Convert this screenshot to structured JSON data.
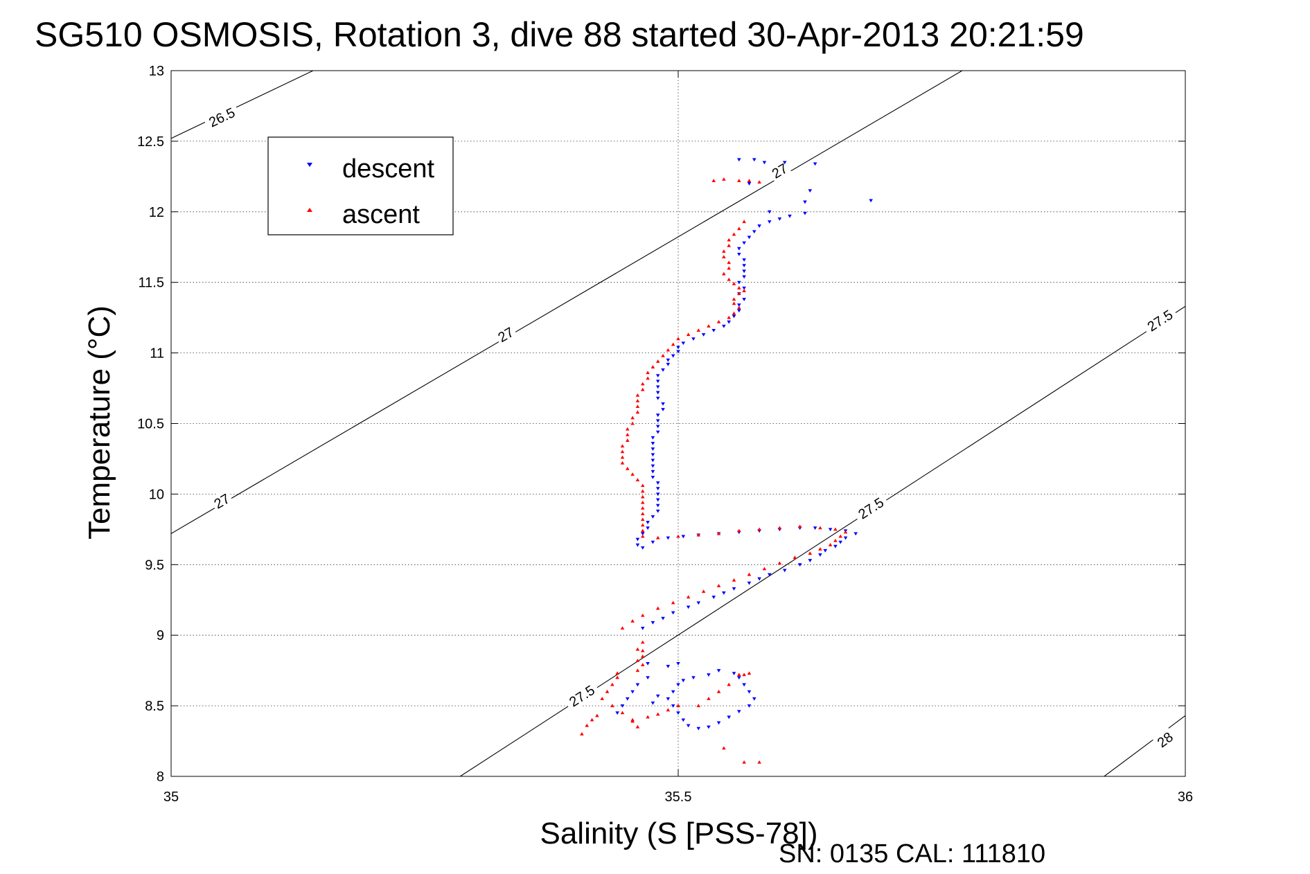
{
  "footer": "SN: 0135  CAL: 111810",
  "chart_data": {
    "type": "scatter",
    "title": "SG510 OSMOSIS, Rotation 3, dive 88 started 30-Apr-2013 20:21:59",
    "xlabel": "Salinity (S [PSS-78])",
    "ylabel": "Temperature (°C)",
    "xlim": [
      35,
      36
    ],
    "ylim": [
      8,
      13
    ],
    "xticks": [
      35,
      35.5,
      36
    ],
    "xtick_labels": [
      "35",
      "35.5",
      "36"
    ],
    "yticks": [
      8,
      8.5,
      9,
      9.5,
      10,
      10.5,
      11,
      11.5,
      12,
      12.5,
      13
    ],
    "ytick_labels": [
      "8",
      "8.5",
      "9",
      "9.5",
      "10",
      "10.5",
      "11",
      "11.5",
      "12",
      "12.5",
      "13"
    ],
    "grid": true,
    "legend_position": "top-left",
    "isopycnals": [
      {
        "label": "26.5",
        "segments": [
          [
            [
              35.0,
              12.52
            ],
            [
              35.14,
              13.0
            ]
          ]
        ],
        "labels_at": [
          [
            35.05,
            12.67
          ]
        ]
      },
      {
        "label": "27",
        "segments": [
          [
            [
              35.0,
              9.72
            ],
            [
              35.78,
              13.0
            ]
          ]
        ],
        "labels_at": [
          [
            35.05,
            9.95
          ],
          [
            35.33,
            11.13
          ],
          [
            35.6,
            12.29
          ]
        ]
      },
      {
        "label": "27.5",
        "segments": [
          [
            [
              35.285,
              8.0
            ],
            [
              36.0,
              11.33
            ]
          ]
        ],
        "labels_at": [
          [
            35.405,
            8.57
          ],
          [
            35.69,
            9.9
          ],
          [
            35.975,
            11.23
          ]
        ]
      },
      {
        "label": "28",
        "segments": [
          [
            [
              35.92,
              8.0
            ],
            [
              36.0,
              8.43
            ]
          ]
        ],
        "labels_at": [
          [
            35.98,
            8.26
          ]
        ]
      }
    ],
    "series": [
      {
        "name": "descent",
        "color": "#0000ff",
        "marker": "triangle-down",
        "points": [
          [
            35.56,
            12.37
          ],
          [
            35.575,
            12.37
          ],
          [
            35.585,
            12.35
          ],
          [
            35.605,
            12.35
          ],
          [
            35.635,
            12.34
          ],
          [
            35.57,
            12.2
          ],
          [
            35.63,
            12.15
          ],
          [
            35.625,
            12.07
          ],
          [
            35.69,
            12.08
          ],
          [
            35.59,
            12.0
          ],
          [
            35.625,
            11.99
          ],
          [
            35.61,
            11.97
          ],
          [
            35.6,
            11.95
          ],
          [
            35.59,
            11.93
          ],
          [
            35.58,
            11.9
          ],
          [
            35.575,
            11.86
          ],
          [
            35.57,
            11.82
          ],
          [
            35.565,
            11.78
          ],
          [
            35.56,
            11.74
          ],
          [
            35.56,
            11.7
          ],
          [
            35.565,
            11.66
          ],
          [
            35.565,
            11.62
          ],
          [
            35.565,
            11.58
          ],
          [
            35.565,
            11.54
          ],
          [
            35.56,
            11.5
          ],
          [
            35.565,
            11.46
          ],
          [
            35.56,
            11.42
          ],
          [
            35.565,
            11.38
          ],
          [
            35.56,
            11.34
          ],
          [
            35.56,
            11.3
          ],
          [
            35.555,
            11.26
          ],
          [
            35.55,
            11.22
          ],
          [
            35.545,
            11.19
          ],
          [
            35.535,
            11.16
          ],
          [
            35.525,
            11.13
          ],
          [
            35.515,
            11.1
          ],
          [
            35.505,
            11.07
          ],
          [
            35.5,
            11.04
          ],
          [
            35.5,
            11.01
          ],
          [
            35.495,
            10.98
          ],
          [
            35.49,
            10.95
          ],
          [
            35.49,
            10.92
          ],
          [
            35.485,
            10.88
          ],
          [
            35.48,
            10.84
          ],
          [
            35.48,
            10.8
          ],
          [
            35.48,
            10.76
          ],
          [
            35.48,
            10.72
          ],
          [
            35.48,
            10.68
          ],
          [
            35.485,
            10.64
          ],
          [
            35.485,
            10.6
          ],
          [
            35.48,
            10.56
          ],
          [
            35.48,
            10.52
          ],
          [
            35.48,
            10.48
          ],
          [
            35.48,
            10.44
          ],
          [
            35.475,
            10.4
          ],
          [
            35.475,
            10.36
          ],
          [
            35.475,
            10.32
          ],
          [
            35.475,
            10.28
          ],
          [
            35.475,
            10.24
          ],
          [
            35.475,
            10.2
          ],
          [
            35.475,
            10.16
          ],
          [
            35.475,
            10.12
          ],
          [
            35.48,
            10.08
          ],
          [
            35.48,
            10.04
          ],
          [
            35.48,
            10.0
          ],
          [
            35.48,
            9.96
          ],
          [
            35.48,
            9.92
          ],
          [
            35.48,
            9.88
          ],
          [
            35.475,
            9.84
          ],
          [
            35.47,
            9.8
          ],
          [
            35.47,
            9.76
          ],
          [
            35.465,
            9.72
          ],
          [
            35.46,
            9.68
          ],
          [
            35.46,
            9.64
          ],
          [
            35.465,
            9.62
          ],
          [
            35.475,
            9.66
          ],
          [
            35.49,
            9.69
          ],
          [
            35.505,
            9.7
          ],
          [
            35.52,
            9.71
          ],
          [
            35.54,
            9.72
          ],
          [
            35.56,
            9.73
          ],
          [
            35.58,
            9.74
          ],
          [
            35.6,
            9.75
          ],
          [
            35.62,
            9.76
          ],
          [
            35.635,
            9.76
          ],
          [
            35.65,
            9.75
          ],
          [
            35.665,
            9.74
          ],
          [
            35.675,
            9.72
          ],
          [
            35.665,
            9.69
          ],
          [
            35.66,
            9.66
          ],
          [
            35.655,
            9.63
          ],
          [
            35.645,
            9.6
          ],
          [
            35.64,
            9.57
          ],
          [
            35.63,
            9.53
          ],
          [
            35.62,
            9.5
          ],
          [
            35.605,
            9.46
          ],
          [
            35.59,
            9.43
          ],
          [
            35.58,
            9.4
          ],
          [
            35.57,
            9.37
          ],
          [
            35.555,
            9.33
          ],
          [
            35.545,
            9.3
          ],
          [
            35.535,
            9.27
          ],
          [
            35.52,
            9.23
          ],
          [
            35.51,
            9.2
          ],
          [
            35.495,
            9.16
          ],
          [
            35.485,
            9.12
          ],
          [
            35.475,
            9.09
          ],
          [
            35.465,
            9.05
          ],
          [
            35.555,
            8.73
          ],
          [
            35.54,
            8.75
          ],
          [
            35.53,
            8.72
          ],
          [
            35.515,
            8.7
          ],
          [
            35.505,
            8.68
          ],
          [
            35.5,
            8.65
          ],
          [
            35.495,
            8.6
          ],
          [
            35.49,
            8.55
          ],
          [
            35.495,
            8.5
          ],
          [
            35.5,
            8.45
          ],
          [
            35.505,
            8.4
          ],
          [
            35.51,
            8.36
          ],
          [
            35.52,
            8.34
          ],
          [
            35.53,
            8.35
          ],
          [
            35.54,
            8.38
          ],
          [
            35.55,
            8.42
          ],
          [
            35.56,
            8.46
          ],
          [
            35.57,
            8.5
          ],
          [
            35.575,
            8.55
          ],
          [
            35.57,
            8.6
          ],
          [
            35.565,
            8.65
          ],
          [
            35.56,
            8.7
          ],
          [
            35.47,
            8.7
          ],
          [
            35.46,
            8.65
          ],
          [
            35.455,
            8.6
          ],
          [
            35.45,
            8.55
          ],
          [
            35.445,
            8.5
          ],
          [
            35.44,
            8.45
          ],
          [
            35.47,
            8.8
          ],
          [
            35.49,
            8.78
          ],
          [
            35.5,
            8.8
          ],
          [
            35.48,
            8.57
          ],
          [
            35.475,
            8.52
          ]
        ]
      },
      {
        "name": "ascent",
        "color": "#ff0000",
        "marker": "triangle-up",
        "points": [
          [
            35.535,
            12.22
          ],
          [
            35.545,
            12.23
          ],
          [
            35.56,
            12.22
          ],
          [
            35.57,
            12.22
          ],
          [
            35.58,
            12.21
          ],
          [
            35.565,
            11.93
          ],
          [
            35.56,
            11.88
          ],
          [
            35.555,
            11.84
          ],
          [
            35.55,
            11.8
          ],
          [
            35.55,
            11.76
          ],
          [
            35.545,
            11.72
          ],
          [
            35.545,
            11.68
          ],
          [
            35.55,
            11.64
          ],
          [
            35.55,
            11.6
          ],
          [
            35.545,
            11.56
          ],
          [
            35.55,
            11.52
          ],
          [
            35.555,
            11.49
          ],
          [
            35.56,
            11.46
          ],
          [
            35.565,
            11.44
          ],
          [
            35.56,
            11.42
          ],
          [
            35.555,
            11.38
          ],
          [
            35.555,
            11.35
          ],
          [
            35.56,
            11.32
          ],
          [
            35.555,
            11.28
          ],
          [
            35.55,
            11.25
          ],
          [
            35.54,
            11.22
          ],
          [
            35.53,
            11.19
          ],
          [
            35.52,
            11.16
          ],
          [
            35.51,
            11.13
          ],
          [
            35.5,
            11.1
          ],
          [
            35.495,
            11.06
          ],
          [
            35.49,
            11.02
          ],
          [
            35.485,
            10.98
          ],
          [
            35.48,
            10.94
          ],
          [
            35.475,
            10.9
          ],
          [
            35.47,
            10.86
          ],
          [
            35.47,
            10.82
          ],
          [
            35.465,
            10.78
          ],
          [
            35.465,
            10.74
          ],
          [
            35.46,
            10.7
          ],
          [
            35.46,
            10.66
          ],
          [
            35.46,
            10.62
          ],
          [
            35.46,
            10.58
          ],
          [
            35.455,
            10.54
          ],
          [
            35.455,
            10.5
          ],
          [
            35.45,
            10.46
          ],
          [
            35.45,
            10.42
          ],
          [
            35.45,
            10.38
          ],
          [
            35.445,
            10.34
          ],
          [
            35.445,
            10.3
          ],
          [
            35.445,
            10.26
          ],
          [
            35.445,
            10.22
          ],
          [
            35.45,
            10.18
          ],
          [
            35.455,
            10.14
          ],
          [
            35.46,
            10.1
          ],
          [
            35.465,
            10.06
          ],
          [
            35.465,
            10.02
          ],
          [
            35.465,
            9.98
          ],
          [
            35.465,
            9.94
          ],
          [
            35.465,
            9.9
          ],
          [
            35.465,
            9.86
          ],
          [
            35.465,
            9.82
          ],
          [
            35.465,
            9.78
          ],
          [
            35.465,
            9.74
          ],
          [
            35.465,
            9.7
          ],
          [
            35.48,
            9.69
          ],
          [
            35.5,
            9.7
          ],
          [
            35.52,
            9.71
          ],
          [
            35.54,
            9.72
          ],
          [
            35.56,
            9.74
          ],
          [
            35.58,
            9.75
          ],
          [
            35.6,
            9.76
          ],
          [
            35.62,
            9.77
          ],
          [
            35.64,
            9.76
          ],
          [
            35.655,
            9.75
          ],
          [
            35.665,
            9.73
          ],
          [
            35.66,
            9.7
          ],
          [
            35.655,
            9.67
          ],
          [
            35.65,
            9.64
          ],
          [
            35.64,
            9.61
          ],
          [
            35.63,
            9.58
          ],
          [
            35.615,
            9.55
          ],
          [
            35.6,
            9.51
          ],
          [
            35.585,
            9.47
          ],
          [
            35.57,
            9.43
          ],
          [
            35.555,
            9.39
          ],
          [
            35.54,
            9.35
          ],
          [
            35.525,
            9.31
          ],
          [
            35.51,
            9.27
          ],
          [
            35.495,
            9.23
          ],
          [
            35.48,
            9.19
          ],
          [
            35.465,
            9.14
          ],
          [
            35.455,
            9.1
          ],
          [
            35.445,
            9.05
          ],
          [
            35.465,
            8.95
          ],
          [
            35.46,
            8.9
          ],
          [
            35.465,
            8.85
          ],
          [
            35.46,
            8.82
          ],
          [
            35.465,
            8.79
          ],
          [
            35.46,
            8.75
          ],
          [
            35.44,
            8.7
          ],
          [
            35.435,
            8.65
          ],
          [
            35.43,
            8.6
          ],
          [
            35.425,
            8.55
          ],
          [
            35.435,
            8.5
          ],
          [
            35.445,
            8.45
          ],
          [
            35.455,
            8.4
          ],
          [
            35.46,
            8.35
          ],
          [
            35.42,
            8.43
          ],
          [
            35.415,
            8.4
          ],
          [
            35.41,
            8.36
          ],
          [
            35.405,
            8.3
          ],
          [
            35.52,
            8.5
          ],
          [
            35.53,
            8.55
          ],
          [
            35.54,
            8.6
          ],
          [
            35.55,
            8.65
          ],
          [
            35.56,
            8.72
          ],
          [
            35.565,
            8.72
          ],
          [
            35.57,
            8.73
          ],
          [
            35.5,
            8.5
          ],
          [
            35.49,
            8.47
          ],
          [
            35.48,
            8.44
          ],
          [
            35.47,
            8.42
          ],
          [
            35.455,
            8.39
          ],
          [
            35.565,
            8.1
          ],
          [
            35.58,
            8.1
          ],
          [
            35.545,
            8.2
          ],
          [
            35.465,
            8.89
          ],
          [
            35.44,
            8.73
          ]
        ]
      }
    ]
  }
}
